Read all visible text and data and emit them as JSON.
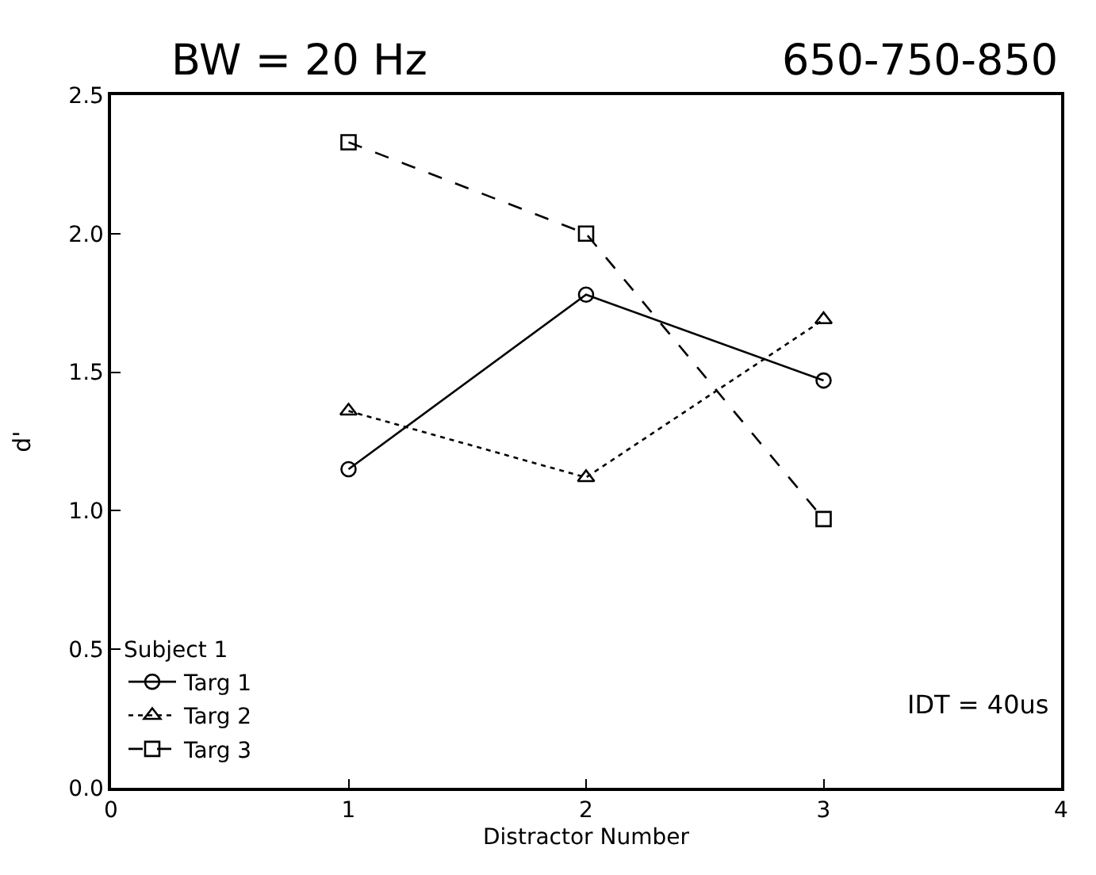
{
  "chart_data": {
    "type": "line",
    "title": "BW = 20 Hz",
    "subtitle": "650-750-850",
    "xlabel": "Distractor Number",
    "ylabel": "d'",
    "legend_title": "Subject 1",
    "legend": "bottom left",
    "xlim": [
      0,
      4
    ],
    "xticks": [
      0,
      1,
      2,
      3,
      4
    ],
    "ylim": [
      0,
      2.5
    ],
    "yticks": [
      {
        "value": 0,
        "label": "0.0"
      },
      {
        "value": 0.5,
        "label": "0.5"
      },
      {
        "value": 1,
        "label": "1.0"
      },
      {
        "value": 1.5,
        "label": "1.5"
      },
      {
        "value": 2,
        "label": "2.0"
      },
      {
        "value": 2.5,
        "label": "2.5"
      }
    ],
    "x": [
      1,
      2,
      3
    ],
    "series": [
      {
        "name": "Targ 1",
        "color": "#000000",
        "marker": "circle",
        "line_style": "solid",
        "values": [
          1.15,
          1.78,
          1.47
        ]
      },
      {
        "name": "Targ 2",
        "color": "#000000",
        "marker": "triangle",
        "line_style": "dotted",
        "values": [
          1.36,
          1.12,
          1.69
        ]
      },
      {
        "name": "Targ 3",
        "color": "#000000",
        "marker": "square",
        "line_style": "dashed",
        "values": [
          2.33,
          2.0,
          0.97
        ]
      }
    ],
    "annotations": [
      "IDT = 40us"
    ]
  }
}
